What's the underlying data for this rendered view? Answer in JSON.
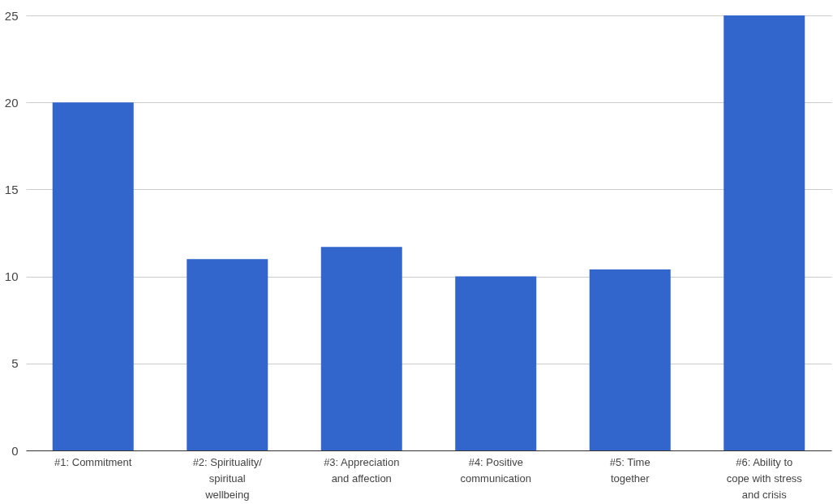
{
  "chart_data": {
    "type": "bar",
    "categories": [
      "#1: Commitment",
      "#2: Spirituality/\nspiritual\nwellbeing",
      "#3: Appreciation\nand affection",
      "#4: Positive\ncommunication",
      "#5: Time\ntogether",
      "#6: Ability to\ncope with stress\nand crisis"
    ],
    "values": [
      20,
      11,
      11.7,
      10,
      10.4,
      25
    ],
    "color": "#3366cc",
    "ylim": [
      0,
      25
    ],
    "yticks": [
      0,
      5,
      10,
      15,
      20,
      25
    ],
    "grid": "y"
  }
}
